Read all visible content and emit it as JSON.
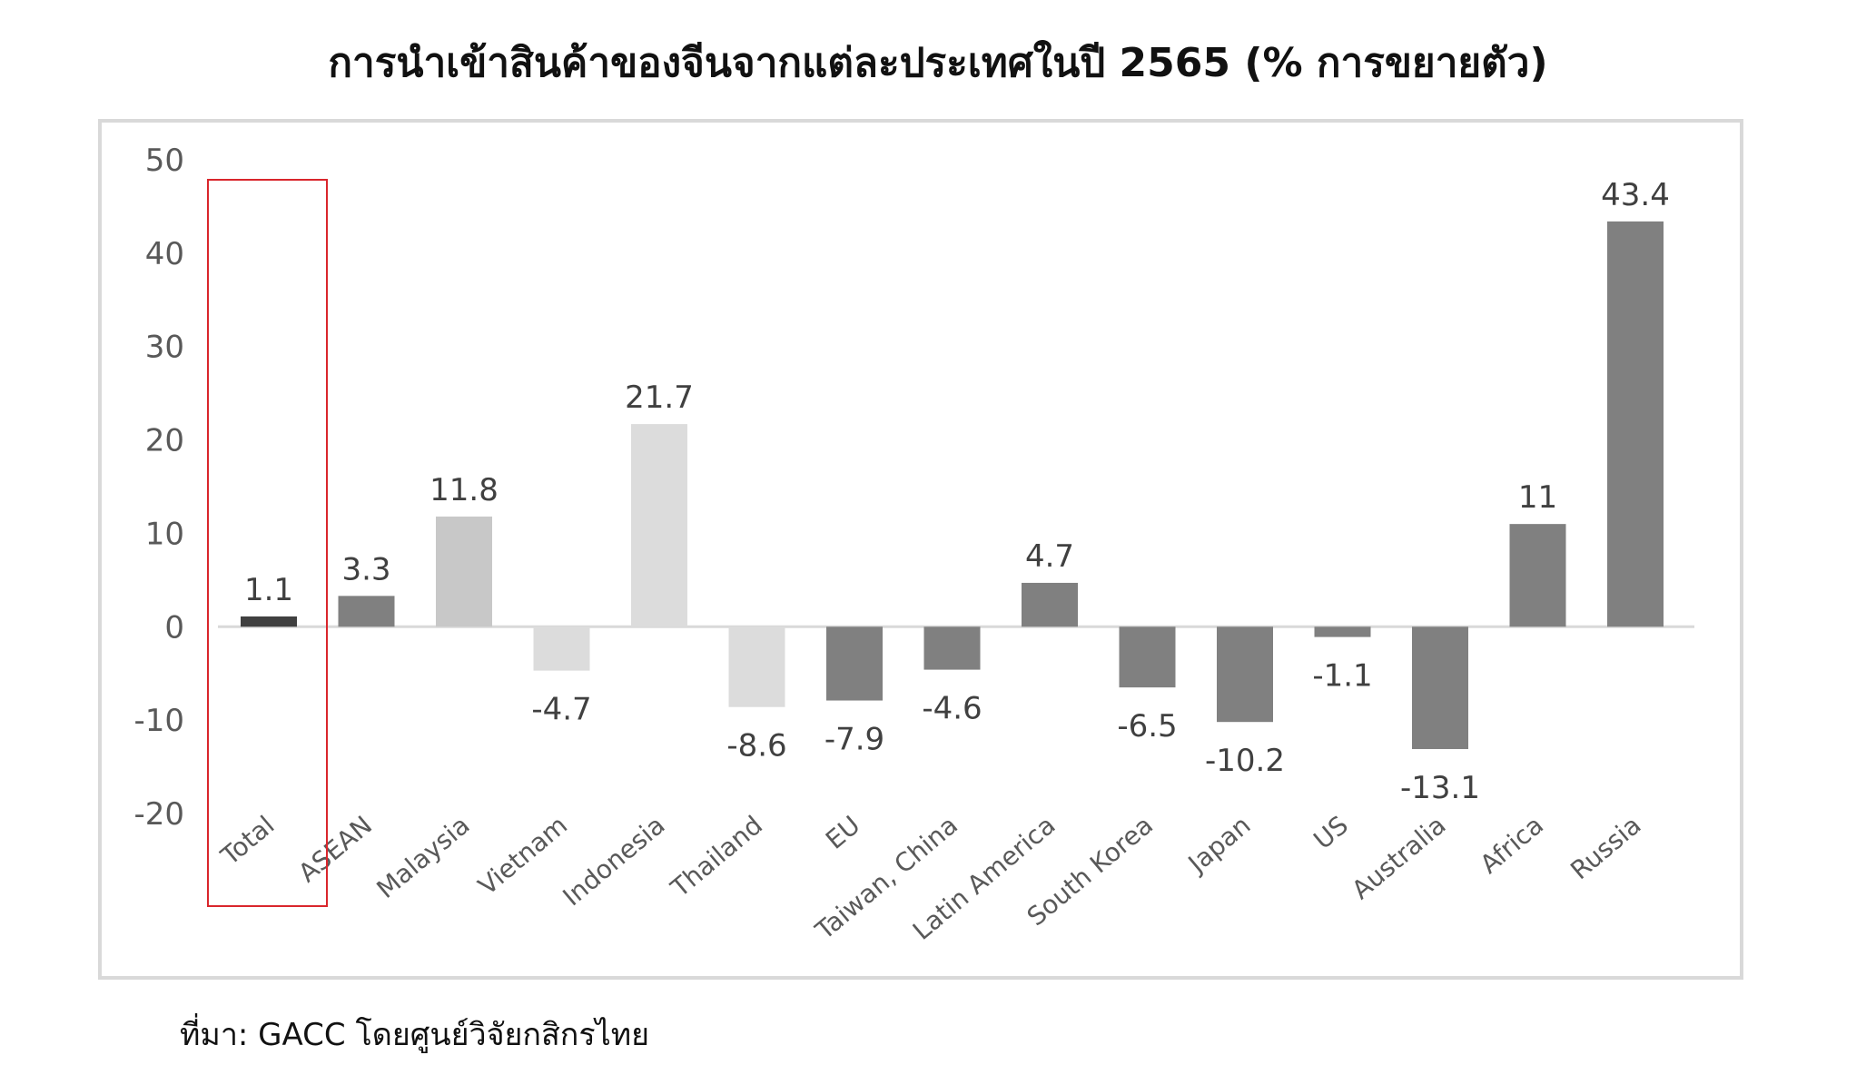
{
  "title": "การนำเข้าสินค้าของจีนจากแต่ละประเทศในปี 2565 (% การขยายตัว)",
  "source": "ที่มา: GACC โดยศูนย์วิจัยกสิกรไทย",
  "chart_data": {
    "type": "bar",
    "title": "การนำเข้าสินค้าของจีนจากแต่ละประเทศในปี 2565 (% การขยายตัว)",
    "xlabel": "",
    "ylabel": "",
    "ylim": [
      -20,
      50
    ],
    "yticks": [
      50,
      40,
      30,
      20,
      10,
      0,
      -10,
      -20
    ],
    "grid": false,
    "legend": "none",
    "highlighted_category": "Total",
    "categories": [
      "Total",
      "ASEAN",
      "Malaysia",
      "Vietnam",
      "Indonesia",
      "Thailand",
      "EU",
      "Taiwan, China",
      "Latin America",
      "South Korea",
      "Japan",
      "US",
      "Australia",
      "Africa",
      "Russia"
    ],
    "values": [
      1.1,
      3.3,
      11.8,
      -4.7,
      21.7,
      -8.6,
      -7.9,
      -4.6,
      4.7,
      -6.5,
      -10.2,
      -1.1,
      -13.1,
      11,
      43.4
    ],
    "value_labels": [
      "1.1",
      "3.3",
      "11.8",
      "-4.7",
      "21.7",
      "-8.6",
      "-7.9",
      "-4.6",
      "4.7",
      "-6.5",
      "-10.2",
      "-1.1",
      "-13.1",
      "11",
      "43.4"
    ],
    "colors": [
      "#404040",
      "#808080",
      "#c8c8c8",
      "#dcdcdc",
      "#dcdcdc",
      "#dcdcdc",
      "#808080",
      "#808080",
      "#808080",
      "#808080",
      "#808080",
      "#808080",
      "#808080",
      "#808080",
      "#808080"
    ],
    "highlight_box_color": "#d9262c"
  }
}
